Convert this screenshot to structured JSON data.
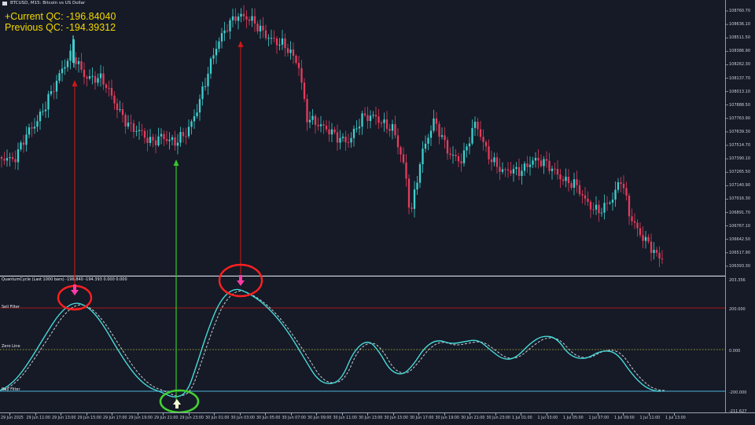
{
  "window": {
    "title": "BTCUSD, M15: Bitcoin vs US Dollar"
  },
  "indicator_overlay": {
    "current_label": "+Current QC: -196.84040",
    "previous_label": "Previous QC: -194.39312"
  },
  "indicator_pane": {
    "title": "QuantumCycle (Last 1000 bars) -196.840 -194.393 0.000 0.000",
    "sell_label": "Sell Filter",
    "zero_label": "Zero Line",
    "buy_label": "Buy Filter",
    "scale_top": "203.356",
    "scale_sell": "200.000",
    "scale_zero": "0.000",
    "scale_buy": "-200.000",
    "scale_bottom": "-211.627",
    "sell_level": 200,
    "buy_level": -200,
    "zero_level": 0
  },
  "price_axis": {
    "ticks": [
      "108760.70",
      "108636.10",
      "108511.50",
      "108386.90",
      "108262.30",
      "108137.70",
      "108013.10",
      "107888.50",
      "107763.90",
      "107639.30",
      "107514.70",
      "107390.10",
      "107265.50",
      "107140.90",
      "107016.30",
      "106891.70",
      "106767.10",
      "106642.50",
      "106517.90",
      "106393.30"
    ]
  },
  "time_axis": {
    "ticks": [
      "29 Jun 2025",
      "29 Jun 11:00",
      "29 Jun 13:00",
      "29 Jun 15:00",
      "29 Jun 17:00",
      "29 Jun 19:00",
      "29 Jun 21:00",
      "29 Jun 23:00",
      "30 Jun 01:00",
      "30 Jun 03:00",
      "30 Jun 05:00",
      "30 Jun 07:00",
      "30 Jun 09:00",
      "30 Jun 11:00",
      "30 Jun 13:00",
      "30 Jun 15:00",
      "30 Jun 17:00",
      "30 Jun 19:00",
      "30 Jun 21:00",
      "30 Jun 23:00",
      "1 Jul 01:00",
      "1 Jul 03:00",
      "1 Jul 05:00",
      "1 Jul 07:00",
      "1 Jul 09:00",
      "1 Jul 11:00",
      "1 Jul 13:00"
    ]
  },
  "colors": {
    "background": "#151a26",
    "bull": "#3fd0d0",
    "bear": "#e33c5d",
    "sell_filter": "#a81818",
    "zero_line": "#b7b43a",
    "buy_filter": "#4db3d8",
    "main_wave": "#47d9d9",
    "secondary_wave": "#d8e3ea",
    "sell_signal": "#ff3aa6",
    "buy_signal": "#f2ffd2",
    "sell_circle": "#ff2020",
    "buy_circle": "#42d032"
  },
  "icons": {
    "window": "window-icon",
    "sell_signal": "arrow-down-signal-icon",
    "buy_signal": "arrow-up-signal-icon"
  }
}
